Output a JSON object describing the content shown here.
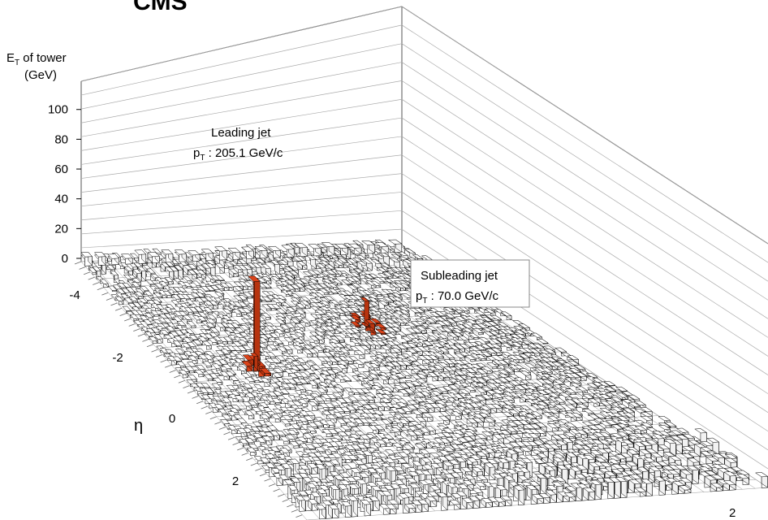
{
  "chart_data": {
    "type": "lego-3d-histogram",
    "experiment_label": "CMS",
    "z_axis": {
      "label_main": "E",
      "label_sub": "T",
      "label_rest": " of tower",
      "unit": "(GeV)",
      "ticks": [
        0,
        20,
        40,
        60,
        80,
        100
      ]
    },
    "eta_axis": {
      "label": "η",
      "ticks": [
        -4,
        -2,
        0,
        2
      ]
    },
    "phi_axis": {
      "visible_ticks": [
        2
      ]
    },
    "annotations": [
      {
        "id": "leading",
        "line1": "Leading jet",
        "line2_main": "p",
        "line2_sub": "T",
        "line2_rest": " : 205.1 GeV/c"
      },
      {
        "id": "subleading",
        "line1": "Subleading jet",
        "line2_main": "p",
        "line2_sub": "T",
        "line2_rest": " : 70.0 GeV/c"
      }
    ],
    "jets": [
      {
        "name": "leading",
        "eta": -1.2,
        "peak_et": 77,
        "color": "#d9431a"
      },
      {
        "name": "subleading",
        "eta": -0.8,
        "peak_et": 23,
        "color": "#d9431a"
      }
    ],
    "background_tower_color": "#ffffff",
    "tower_outline_color": "#000000",
    "frame_color": "#555555"
  }
}
